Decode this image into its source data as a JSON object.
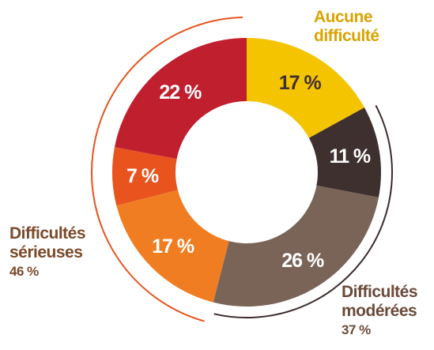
{
  "chart_data": {
    "type": "donut",
    "categories": [
      null,
      null,
      null,
      null,
      null,
      null
    ],
    "values": [
      17,
      11,
      26,
      17,
      7,
      22
    ],
    "value_labels": [
      "17 %",
      "11 %",
      "26 %",
      "17 %",
      "7 %",
      "22 %"
    ],
    "colors": [
      "#f5c400",
      "#3f3030",
      "#7a6458",
      "#f07d22",
      "#e8531e",
      "#c01f2e"
    ],
    "label_colors": [
      "#3f3030",
      "#ffffff",
      "#ffffff",
      "#ffffff",
      "#ffffff",
      "#ffffff"
    ],
    "groups": [
      {
        "name": "Aucune difficulté",
        "color": "#d9a300"
      },
      {
        "name": "Difficultés modérées",
        "value": 37,
        "value_label": "37 %",
        "color": "#6b4a3a",
        "arc_color": "#3b2b2b"
      },
      {
        "name": "Difficultés sérieuses",
        "value": 46,
        "value_label": "46 %",
        "color": "#7a4a2a",
        "arc_color": "#e8531e"
      }
    ]
  }
}
